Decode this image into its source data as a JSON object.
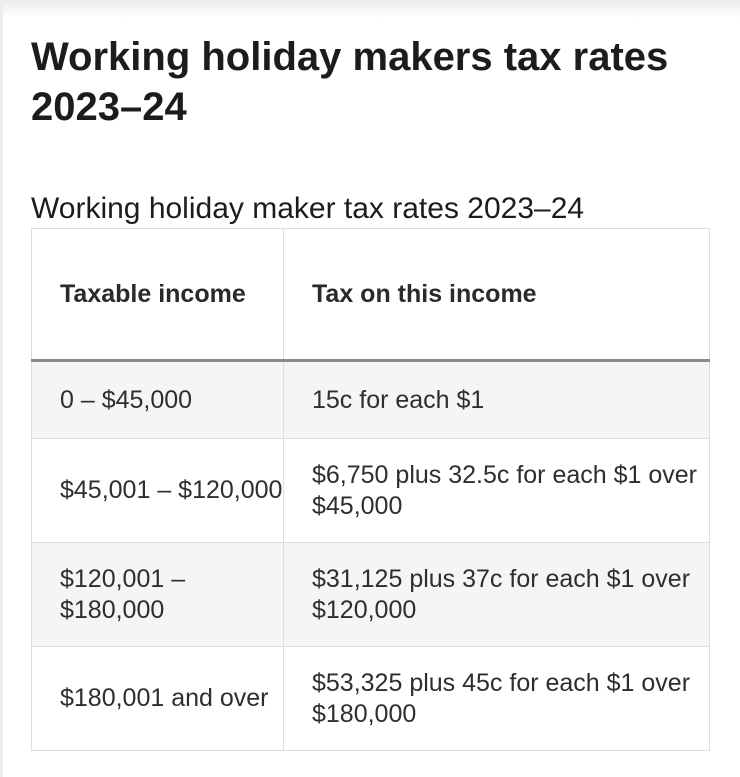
{
  "page_title": "Working holiday makers tax rates 2023–24",
  "table": {
    "caption": "Working holiday maker tax rates 2023–24",
    "headers": [
      "Taxable income",
      "Tax on this income"
    ],
    "rows": [
      [
        "0 – $45,000",
        "15c for each $1"
      ],
      [
        "$45,001 – $120,000",
        "$6,750 plus 32.5c for each $1 over $45,000"
      ],
      [
        "$120,001 – $180,000",
        "$31,125 plus 37c for each $1 over $120,000"
      ],
      [
        "$180,001 and over",
        "$53,325 plus 45c for each $1 over $180,000"
      ]
    ]
  }
}
